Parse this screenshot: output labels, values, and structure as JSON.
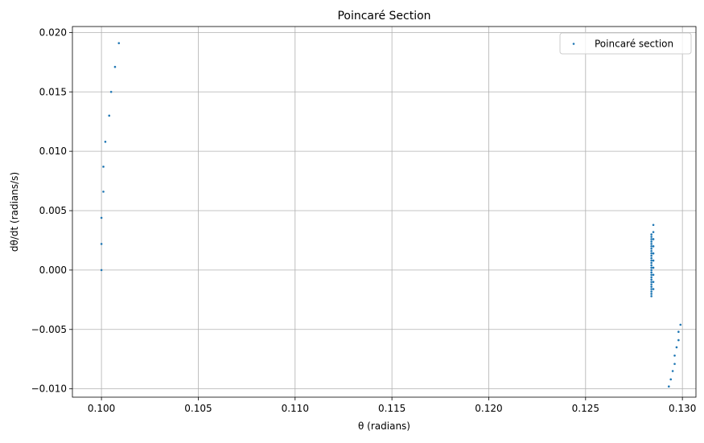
{
  "chart_data": {
    "type": "scatter",
    "title": "Poincaré Section",
    "xlabel": "θ (radians)",
    "ylabel": "dθ/dt (radians/s)",
    "xlim": [
      0.0985,
      0.1307
    ],
    "ylim": [
      -0.0107,
      0.0205
    ],
    "grid": true,
    "legend_position": "top-right",
    "x_ticks": [
      {
        "value": 0.1,
        "label": "0.100"
      },
      {
        "value": 0.105,
        "label": "0.105"
      },
      {
        "value": 0.11,
        "label": "0.110"
      },
      {
        "value": 0.115,
        "label": "0.115"
      },
      {
        "value": 0.12,
        "label": "0.120"
      },
      {
        "value": 0.125,
        "label": "0.125"
      },
      {
        "value": 0.13,
        "label": "0.130"
      }
    ],
    "y_ticks": [
      {
        "value": -0.01,
        "label": "−0.010"
      },
      {
        "value": -0.005,
        "label": "−0.005"
      },
      {
        "value": 0.0,
        "label": "0.000"
      },
      {
        "value": 0.005,
        "label": "0.005"
      },
      {
        "value": 0.01,
        "label": "0.010"
      },
      {
        "value": 0.015,
        "label": "0.015"
      },
      {
        "value": 0.02,
        "label": "0.020"
      }
    ],
    "series": [
      {
        "name": "Poincaré section",
        "color": "#1f77b4",
        "points": [
          {
            "x": 0.1,
            "y": 0.0
          },
          {
            "x": 0.1,
            "y": 0.0022
          },
          {
            "x": 0.1,
            "y": 0.0044
          },
          {
            "x": 0.1001,
            "y": 0.0066
          },
          {
            "x": 0.1001,
            "y": 0.0087
          },
          {
            "x": 0.1002,
            "y": 0.0108
          },
          {
            "x": 0.1004,
            "y": 0.013
          },
          {
            "x": 0.1005,
            "y": 0.015
          },
          {
            "x": 0.1007,
            "y": 0.0171
          },
          {
            "x": 0.1009,
            "y": 0.0191
          },
          {
            "x": 0.1284,
            "y": 0.003
          },
          {
            "x": 0.1284,
            "y": 0.0028
          },
          {
            "x": 0.1284,
            "y": 0.0026
          },
          {
            "x": 0.1284,
            "y": 0.0024
          },
          {
            "x": 0.1284,
            "y": 0.0022
          },
          {
            "x": 0.1284,
            "y": 0.002
          },
          {
            "x": 0.1284,
            "y": 0.0018
          },
          {
            "x": 0.1284,
            "y": 0.0016
          },
          {
            "x": 0.1284,
            "y": 0.0014
          },
          {
            "x": 0.1284,
            "y": 0.0012
          },
          {
            "x": 0.1284,
            "y": 0.001
          },
          {
            "x": 0.1284,
            "y": 0.0008
          },
          {
            "x": 0.1284,
            "y": 0.0006
          },
          {
            "x": 0.1284,
            "y": 0.0004
          },
          {
            "x": 0.1284,
            "y": 0.0002
          },
          {
            "x": 0.1284,
            "y": 0.0
          },
          {
            "x": 0.1284,
            "y": -0.0002
          },
          {
            "x": 0.1284,
            "y": -0.0004
          },
          {
            "x": 0.1284,
            "y": -0.0006
          },
          {
            "x": 0.1284,
            "y": -0.0008
          },
          {
            "x": 0.1284,
            "y": -0.001
          },
          {
            "x": 0.1284,
            "y": -0.0012
          },
          {
            "x": 0.1284,
            "y": -0.0014
          },
          {
            "x": 0.1284,
            "y": -0.0016
          },
          {
            "x": 0.1284,
            "y": -0.0018
          },
          {
            "x": 0.1284,
            "y": -0.002
          },
          {
            "x": 0.1284,
            "y": -0.0022
          },
          {
            "x": 0.1285,
            "y": 0.0038
          },
          {
            "x": 0.1285,
            "y": 0.0032
          },
          {
            "x": 0.1285,
            "y": 0.0026
          },
          {
            "x": 0.1285,
            "y": 0.002
          },
          {
            "x": 0.1285,
            "y": 0.0014
          },
          {
            "x": 0.1285,
            "y": 0.0008
          },
          {
            "x": 0.1285,
            "y": 0.0002
          },
          {
            "x": 0.1285,
            "y": -0.0004
          },
          {
            "x": 0.1285,
            "y": -0.001
          },
          {
            "x": 0.1285,
            "y": -0.0016
          },
          {
            "x": 0.1293,
            "y": -0.0098
          },
          {
            "x": 0.1294,
            "y": -0.0092
          },
          {
            "x": 0.1295,
            "y": -0.0085
          },
          {
            "x": 0.1296,
            "y": -0.0079
          },
          {
            "x": 0.1296,
            "y": -0.0072
          },
          {
            "x": 0.1297,
            "y": -0.0065
          },
          {
            "x": 0.1298,
            "y": -0.0059
          },
          {
            "x": 0.1298,
            "y": -0.0052
          },
          {
            "x": 0.1299,
            "y": -0.0046
          }
        ]
      }
    ]
  }
}
